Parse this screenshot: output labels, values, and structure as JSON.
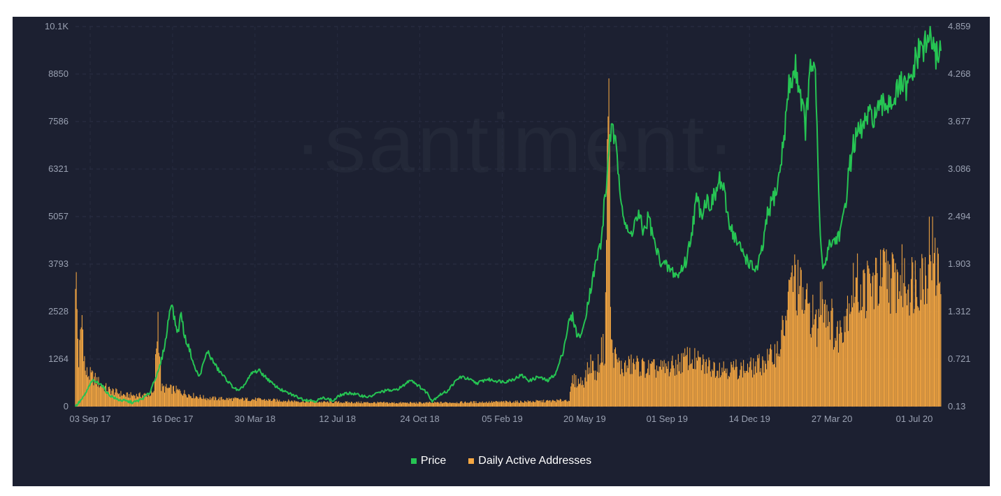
{
  "chart_data": {
    "type": "line+bar",
    "watermark": "·santiment·",
    "left_axis": {
      "ylim": [
        0,
        10100
      ],
      "ticks": [
        "0",
        "1264",
        "2528",
        "3793",
        "5057",
        "6321",
        "7586",
        "8850",
        "10.1K"
      ]
    },
    "right_axis": {
      "ylim": [
        0.13,
        4.859
      ],
      "ticks": [
        "0.13",
        "0.721",
        "1.312",
        "1.903",
        "2.494",
        "3.086",
        "3.677",
        "4.268",
        "4.859"
      ]
    },
    "x_ticks": [
      "03 Sep 17",
      "16 Dec 17",
      "30 Mar 18",
      "12 Jul 18",
      "24 Oct 18",
      "05 Feb 19",
      "20 May 19",
      "01 Sep 19",
      "14 Dec 19",
      "27 Mar 20",
      "01 Jul 20"
    ],
    "x_range_days": [
      0,
      1048
    ],
    "series": [
      {
        "name": "Price",
        "color": "#26c453",
        "axis": "right",
        "points": [
          [
            0,
            0.13
          ],
          [
            10,
            0.25
          ],
          [
            20,
            0.45
          ],
          [
            30,
            0.42
          ],
          [
            40,
            0.28
          ],
          [
            50,
            0.22
          ],
          [
            60,
            0.2
          ],
          [
            70,
            0.18
          ],
          [
            80,
            0.22
          ],
          [
            90,
            0.3
          ],
          [
            95,
            0.45
          ],
          [
            100,
            0.55
          ],
          [
            105,
            0.75
          ],
          [
            110,
            1.0
          ],
          [
            113,
            1.25
          ],
          [
            116,
            1.45
          ],
          [
            120,
            1.2
          ],
          [
            124,
            1.05
          ],
          [
            128,
            1.3
          ],
          [
            132,
            1.0
          ],
          [
            138,
            0.85
          ],
          [
            144,
            0.62
          ],
          [
            150,
            0.5
          ],
          [
            156,
            0.7
          ],
          [
            160,
            0.82
          ],
          [
            165,
            0.72
          ],
          [
            172,
            0.6
          ],
          [
            180,
            0.5
          ],
          [
            190,
            0.38
          ],
          [
            198,
            0.32
          ],
          [
            206,
            0.42
          ],
          [
            214,
            0.55
          ],
          [
            222,
            0.58
          ],
          [
            230,
            0.5
          ],
          [
            240,
            0.4
          ],
          [
            252,
            0.32
          ],
          [
            264,
            0.27
          ],
          [
            276,
            0.22
          ],
          [
            290,
            0.2
          ],
          [
            302,
            0.24
          ],
          [
            312,
            0.2
          ],
          [
            320,
            0.27
          ],
          [
            332,
            0.3
          ],
          [
            344,
            0.27
          ],
          [
            356,
            0.25
          ],
          [
            366,
            0.3
          ],
          [
            376,
            0.33
          ],
          [
            386,
            0.33
          ],
          [
            396,
            0.38
          ],
          [
            406,
            0.47
          ],
          [
            414,
            0.4
          ],
          [
            420,
            0.35
          ],
          [
            426,
            0.3
          ],
          [
            432,
            0.2
          ],
          [
            440,
            0.27
          ],
          [
            450,
            0.32
          ],
          [
            458,
            0.42
          ],
          [
            466,
            0.5
          ],
          [
            474,
            0.48
          ],
          [
            486,
            0.42
          ],
          [
            498,
            0.47
          ],
          [
            510,
            0.45
          ],
          [
            520,
            0.44
          ],
          [
            530,
            0.47
          ],
          [
            540,
            0.52
          ],
          [
            550,
            0.45
          ],
          [
            560,
            0.5
          ],
          [
            572,
            0.45
          ],
          [
            582,
            0.55
          ],
          [
            590,
            0.8
          ],
          [
            598,
            1.2
          ],
          [
            602,
            1.25
          ],
          [
            608,
            1.0
          ],
          [
            614,
            1.05
          ],
          [
            620,
            1.4
          ],
          [
            626,
            1.7
          ],
          [
            632,
            2.0
          ],
          [
            637,
            2.2
          ],
          [
            640,
            2.6
          ],
          [
            644,
            3.0
          ],
          [
            647,
            3.55
          ],
          [
            652,
            3.5
          ],
          [
            656,
            3.2
          ],
          [
            660,
            2.85
          ],
          [
            664,
            2.5
          ],
          [
            668,
            2.3
          ],
          [
            672,
            2.25
          ],
          [
            676,
            2.4
          ],
          [
            682,
            2.5
          ],
          [
            688,
            2.3
          ],
          [
            694,
            2.5
          ],
          [
            700,
            2.2
          ],
          [
            706,
            2.0
          ],
          [
            712,
            1.9
          ],
          [
            718,
            1.85
          ],
          [
            724,
            1.8
          ],
          [
            730,
            1.75
          ],
          [
            734,
            1.85
          ],
          [
            740,
            1.95
          ],
          [
            746,
            2.3
          ],
          [
            752,
            2.7
          ],
          [
            758,
            2.55
          ],
          [
            764,
            2.7
          ],
          [
            770,
            2.65
          ],
          [
            776,
            2.8
          ],
          [
            780,
            2.95
          ],
          [
            784,
            2.85
          ],
          [
            790,
            2.5
          ],
          [
            796,
            2.3
          ],
          [
            802,
            2.15
          ],
          [
            808,
            2.05
          ],
          [
            814,
            1.95
          ],
          [
            820,
            1.85
          ],
          [
            826,
            1.85
          ],
          [
            832,
            2.1
          ],
          [
            838,
            2.5
          ],
          [
            844,
            2.7
          ],
          [
            850,
            2.85
          ],
          [
            856,
            3.3
          ],
          [
            860,
            3.7
          ],
          [
            864,
            4.1
          ],
          [
            868,
            4.2
          ],
          [
            872,
            4.35
          ],
          [
            876,
            4.15
          ],
          [
            880,
            3.9
          ],
          [
            884,
            3.6
          ],
          [
            888,
            4.1
          ],
          [
            892,
            4.45
          ],
          [
            896,
            4.2
          ],
          [
            898,
            3.5
          ],
          [
            902,
            2.2
          ],
          [
            906,
            1.8
          ],
          [
            912,
            2.15
          ],
          [
            920,
            2.2
          ],
          [
            926,
            2.3
          ],
          [
            930,
            2.45
          ],
          [
            936,
            3.0
          ],
          [
            942,
            3.4
          ],
          [
            950,
            3.55
          ],
          [
            958,
            3.7
          ],
          [
            966,
            3.75
          ],
          [
            974,
            3.8
          ],
          [
            980,
            3.9
          ],
          [
            988,
            3.95
          ],
          [
            994,
            4.0
          ],
          [
            1000,
            4.15
          ],
          [
            1006,
            4.05
          ],
          [
            1012,
            4.2
          ],
          [
            1018,
            4.45
          ],
          [
            1024,
            4.6
          ],
          [
            1030,
            4.6
          ],
          [
            1036,
            4.8
          ],
          [
            1040,
            4.45
          ],
          [
            1044,
            4.55
          ],
          [
            1048,
            4.6
          ]
        ]
      },
      {
        "name": "Daily Active Addresses",
        "color": "#f5a742",
        "axis": "left",
        "points": [
          [
            0,
            3800
          ],
          [
            4,
            1200
          ],
          [
            8,
            2400
          ],
          [
            12,
            900
          ],
          [
            20,
            800
          ],
          [
            30,
            600
          ],
          [
            40,
            450
          ],
          [
            60,
            300
          ],
          [
            80,
            300
          ],
          [
            95,
            350
          ],
          [
            100,
            2400
          ],
          [
            104,
            500
          ],
          [
            120,
            450
          ],
          [
            140,
            300
          ],
          [
            160,
            220
          ],
          [
            190,
            200
          ],
          [
            220,
            190
          ],
          [
            260,
            150
          ],
          [
            300,
            120
          ],
          [
            340,
            110
          ],
          [
            380,
            100
          ],
          [
            420,
            100
          ],
          [
            460,
            110
          ],
          [
            500,
            120
          ],
          [
            540,
            130
          ],
          [
            580,
            150
          ],
          [
            598,
            180
          ],
          [
            602,
            700
          ],
          [
            610,
            650
          ],
          [
            616,
            700
          ],
          [
            625,
            1200
          ],
          [
            630,
            800
          ],
          [
            638,
            1600
          ],
          [
            641,
            1400
          ],
          [
            644,
            6000
          ],
          [
            646,
            9800
          ],
          [
            648,
            2500
          ],
          [
            650,
            1500
          ],
          [
            656,
            1200
          ],
          [
            662,
            1000
          ],
          [
            672,
            1100
          ],
          [
            682,
            1100
          ],
          [
            692,
            1000
          ],
          [
            702,
            1000
          ],
          [
            712,
            1000
          ],
          [
            722,
            1050
          ],
          [
            732,
            1150
          ],
          [
            742,
            1300
          ],
          [
            752,
            1200
          ],
          [
            762,
            1100
          ],
          [
            772,
            1050
          ],
          [
            782,
            1050
          ],
          [
            792,
            1000
          ],
          [
            802,
            1000
          ],
          [
            812,
            1000
          ],
          [
            822,
            1050
          ],
          [
            832,
            1150
          ],
          [
            842,
            1300
          ],
          [
            852,
            1550
          ],
          [
            862,
            2500
          ],
          [
            868,
            3500
          ],
          [
            874,
            3200
          ],
          [
            880,
            2900
          ],
          [
            886,
            2600
          ],
          [
            892,
            2500
          ],
          [
            898,
            2000
          ],
          [
            904,
            3200
          ],
          [
            910,
            2600
          ],
          [
            916,
            2300
          ],
          [
            920,
            1800
          ],
          [
            926,
            2000
          ],
          [
            932,
            2500
          ],
          [
            938,
            2900
          ],
          [
            944,
            3300
          ],
          [
            952,
            3100
          ],
          [
            962,
            3200
          ],
          [
            972,
            3300
          ],
          [
            982,
            3500
          ],
          [
            992,
            3300
          ],
          [
            1002,
            3400
          ],
          [
            1012,
            3300
          ],
          [
            1022,
            3500
          ],
          [
            1030,
            3600
          ],
          [
            1036,
            4500
          ],
          [
            1040,
            3700
          ],
          [
            1044,
            3600
          ],
          [
            1048,
            3500
          ]
        ]
      }
    ],
    "legend": [
      "Price",
      "Daily Active Addresses"
    ],
    "legend_position": "bottom-center",
    "grid": true
  }
}
